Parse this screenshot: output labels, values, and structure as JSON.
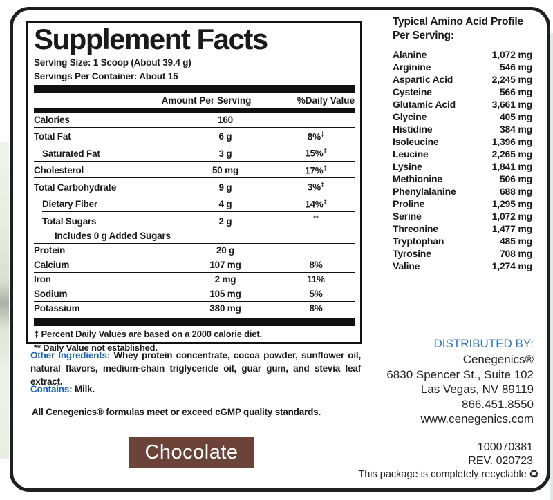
{
  "colors": {
    "accent_blue": "#1d65af",
    "distributed_blue": "#2e75bc",
    "chocolate_brown": "#6b4339"
  },
  "supplement_facts": {
    "title": "Supplement Facts",
    "serving_size": "Serving Size: 1 Scoop (About 39.4 g)",
    "servings_per_container": "Servings Per Container: About 15",
    "columns": {
      "amount": "Amount Per Serving",
      "daily_value": "%Daily Value"
    },
    "rows": [
      {
        "name": "Calories",
        "amount": "160",
        "dv": "",
        "mark": "",
        "indent": 0
      },
      {
        "name": "Total Fat",
        "amount": "6 g",
        "dv": "8%",
        "mark": "‡",
        "indent": 0
      },
      {
        "name": "Saturated Fat",
        "amount": "3 g",
        "dv": "15%",
        "mark": "‡",
        "indent": 1
      },
      {
        "name": "Cholesterol",
        "amount": "50 mg",
        "dv": "17%",
        "mark": "‡",
        "indent": 0
      },
      {
        "name": "Total Carbohydrate",
        "amount": "9 g",
        "dv": "3%",
        "mark": "‡",
        "indent": 0
      },
      {
        "name": "Dietary Fiber",
        "amount": "4 g",
        "dv": "14%",
        "mark": "‡",
        "indent": 1
      },
      {
        "name": "Total Sugars",
        "amount": "2 g",
        "dv": "",
        "mark": "**",
        "indent": 1
      },
      {
        "name": "Includes 0 g Added Sugars",
        "amount": "",
        "dv": "",
        "mark": "",
        "indent": 2
      },
      {
        "name": "Protein",
        "amount": "20 g",
        "dv": "",
        "mark": "",
        "indent": 0
      },
      {
        "name": "Calcium",
        "amount": "107 mg",
        "dv": "8%",
        "mark": "",
        "indent": 0
      },
      {
        "name": "Iron",
        "amount": "2 mg",
        "dv": "11%",
        "mark": "",
        "indent": 0
      },
      {
        "name": "Sodium",
        "amount": "105 mg",
        "dv": "5%",
        "mark": "",
        "indent": 0
      },
      {
        "name": "Potassium",
        "amount": "380 mg",
        "dv": "8%",
        "mark": "",
        "indent": 0
      }
    ],
    "footnotes": [
      "‡ Percent Daily Values are based on a 2000 calorie diet.",
      "** Daily Value not established."
    ]
  },
  "other_ingredients": {
    "label": "Other Ingredients:",
    "text": " Whey protein concentrate, cocoa powder, sunflower oil, natural flavors, medium-chain triglyceride oil, guar gum, and stevia leaf extract."
  },
  "contains": {
    "label": "Contains:",
    "text": " Milk."
  },
  "quality_statement": "All Cenegenics® formulas meet or exceed cGMP quality standards.",
  "flavor": "Chocolate",
  "amino_profile": {
    "heading_line1": "Typical Amino Acid Profile",
    "heading_line2": "Per Serving:",
    "rows": [
      {
        "name": "Alanine",
        "amount": "1,072 mg"
      },
      {
        "name": "Arginine",
        "amount": "546 mg"
      },
      {
        "name": "Aspartic Acid",
        "amount": "2,245 mg"
      },
      {
        "name": "Cysteine",
        "amount": "566 mg"
      },
      {
        "name": "Glutamic Acid",
        "amount": "3,661 mg"
      },
      {
        "name": "Glycine",
        "amount": "405 mg"
      },
      {
        "name": "Histidine",
        "amount": "384 mg"
      },
      {
        "name": "Isoleucine",
        "amount": "1,396 mg"
      },
      {
        "name": "Leucine",
        "amount": "2,265 mg"
      },
      {
        "name": "Lysine",
        "amount": "1,841 mg"
      },
      {
        "name": "Methionine",
        "amount": "506 mg"
      },
      {
        "name": "Phenylalanine",
        "amount": "688 mg"
      },
      {
        "name": "Proline",
        "amount": "1,295 mg"
      },
      {
        "name": "Serine",
        "amount": "1,072 mg"
      },
      {
        "name": "Threonine",
        "amount": "1,477 mg"
      },
      {
        "name": "Tryptophan",
        "amount": "485 mg"
      },
      {
        "name": "Tyrosine",
        "amount": "708 mg"
      },
      {
        "name": "Valine",
        "amount": "1,274 mg"
      }
    ]
  },
  "distributor": {
    "label": "DISTRIBUTED BY:",
    "lines": [
      "Cenegenics®",
      "6830 Spencer St., Suite 102",
      "Las Vegas, NV 89119",
      "866.451.8550",
      "www.cenegenics.com"
    ]
  },
  "codes": {
    "item_number": "100070381",
    "revision": "REV. 020723"
  },
  "recyclable": {
    "text": "This package is completely recyclable",
    "icon": "♻"
  }
}
